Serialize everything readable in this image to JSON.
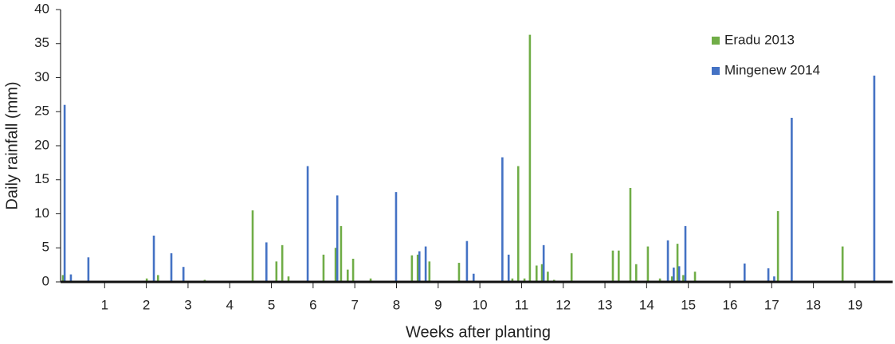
{
  "chart_data": {
    "type": "bar",
    "x_label": "Weeks after planting",
    "y_label": "Daily rainfall (mm)",
    "xlim": [
      0,
      19.9
    ],
    "xticks": [
      1,
      2,
      3,
      4,
      5,
      6,
      7,
      8,
      9,
      10,
      11,
      12,
      13,
      14,
      15,
      16,
      17,
      18,
      19
    ],
    "ylim": [
      0,
      40
    ],
    "yticks": [
      0,
      5,
      10,
      15,
      20,
      25,
      30,
      35,
      40
    ],
    "grid": false,
    "legend": "upper right",
    "series": [
      {
        "name": "Eradu 2013",
        "color": "#70ad47",
        "x": [
          0,
          2.01,
          2.28,
          3.4,
          4.55,
          5.12,
          5.26,
          5.41,
          6.25,
          6.54,
          6.67,
          6.83,
          6.96,
          7.38,
          8.37,
          8.51,
          8.79,
          9.5,
          10.78,
          10.92,
          11.07,
          11.2,
          11.36,
          11.49,
          11.63,
          11.78,
          12.2,
          13.19,
          13.33,
          13.61,
          13.75,
          14.03,
          14.32,
          14.61,
          14.74,
          14.88,
          15.16,
          17.15,
          18.7
        ],
        "values": [
          1.0,
          0.5,
          1.0,
          0.3,
          10.5,
          3.0,
          5.4,
          0.8,
          4.0,
          5.0,
          8.2,
          1.8,
          3.4,
          0.5,
          3.9,
          4.0,
          3.0,
          2.8,
          0.5,
          17,
          0.5,
          36.3,
          2.4,
          2.6,
          1.5,
          0.3,
          4.2,
          4.6,
          4.6,
          13.8,
          2.6,
          5.2,
          0.5,
          0.8,
          5.6,
          1.0,
          1.5,
          10.4,
          5.2
        ]
      },
      {
        "name": "Mingenew 2014",
        "color": "#4472c4",
        "x": [
          0.04,
          0.19,
          0.61,
          2.18,
          2.6,
          2.89,
          4.88,
          5.87,
          6.58,
          7.99,
          8.55,
          8.7,
          9.69,
          9.85,
          10.54,
          10.69,
          11.53,
          14.51,
          14.65,
          14.78,
          14.93,
          16.35,
          16.92,
          17.06,
          17.48,
          19.46
        ],
        "values": [
          26,
          1.1,
          3.6,
          6.8,
          4.2,
          2.2,
          5.8,
          17,
          12.7,
          13.2,
          4.5,
          5.2,
          6,
          1.2,
          18.3,
          4,
          5.4,
          6.1,
          2.1,
          2.3,
          8.2,
          2.7,
          2,
          0.8,
          24.1,
          30.3
        ]
      }
    ]
  }
}
